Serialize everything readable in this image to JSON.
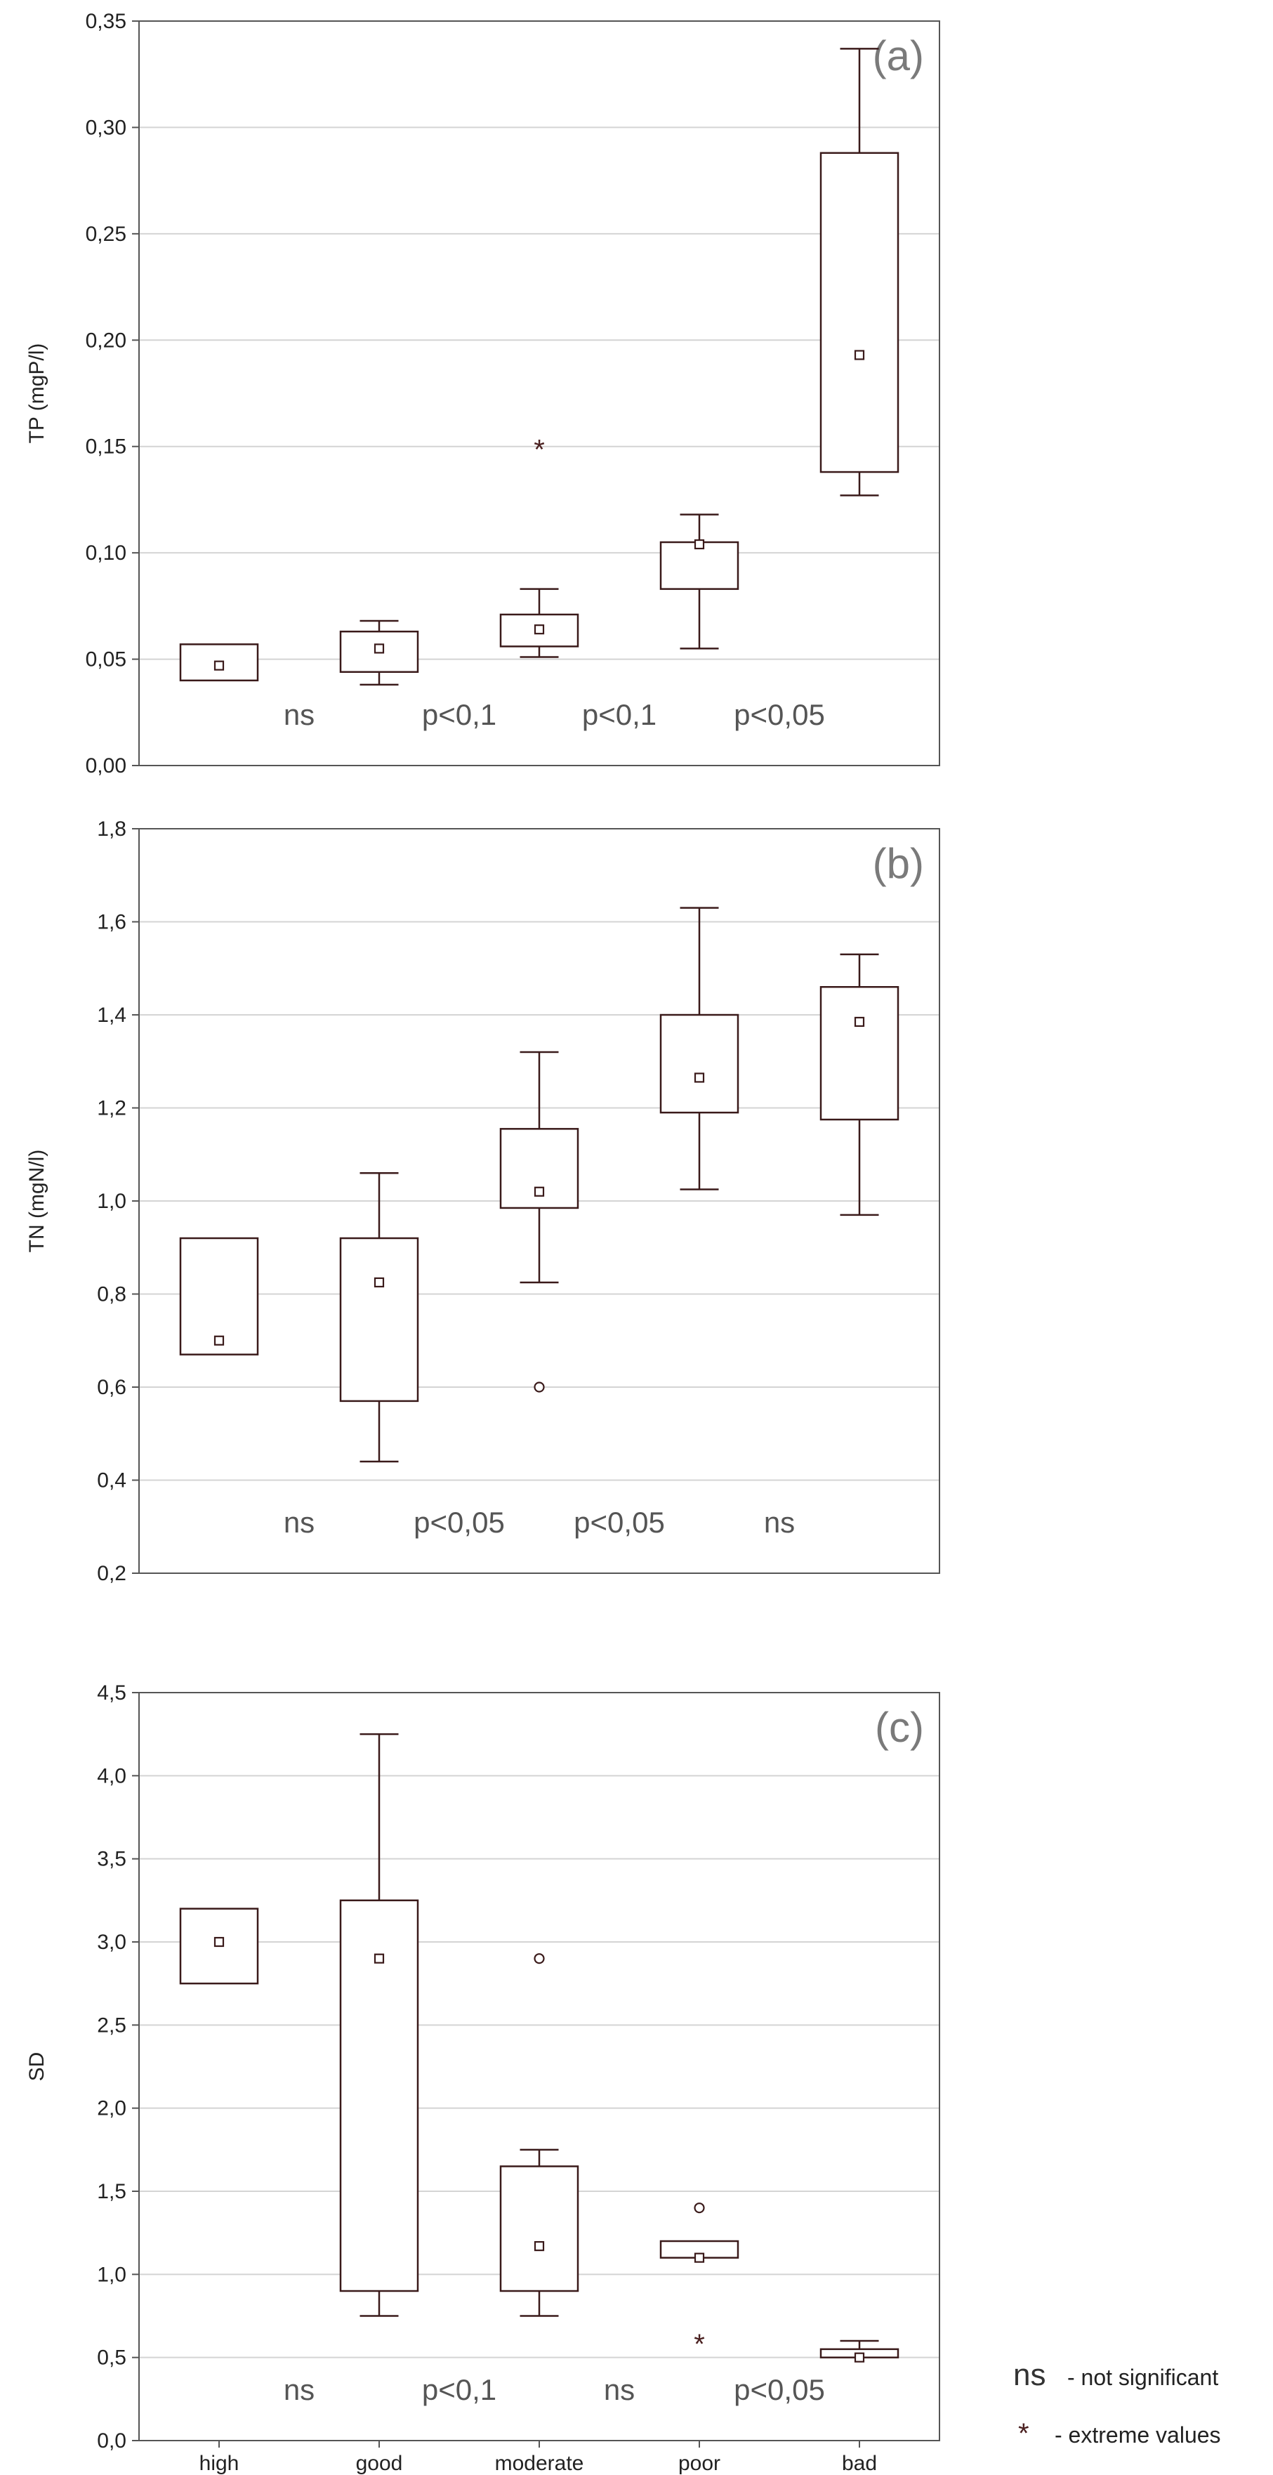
{
  "chart_data": [
    {
      "type": "box",
      "panel_label": "(a)",
      "ylabel": "TP (mgP/l)",
      "ylim": [
        0.0,
        0.35
      ],
      "yticks": [
        "0,00",
        "0,05",
        "0,10",
        "0,15",
        "0,20",
        "0,25",
        "0,30",
        "0,35"
      ],
      "grid": "horizontal",
      "categories": [
        "high",
        "good",
        "moderate",
        "poor",
        "bad"
      ],
      "boxes": [
        {
          "category": "high",
          "q1": 0.04,
          "q3": 0.057,
          "median": 0.047,
          "whisker_low": null,
          "whisker_high": null,
          "outliers": [],
          "extremes": []
        },
        {
          "category": "good",
          "q1": 0.044,
          "q3": 0.063,
          "median": 0.055,
          "whisker_low": 0.038,
          "whisker_high": 0.068,
          "outliers": [],
          "extremes": []
        },
        {
          "category": "moderate",
          "q1": 0.056,
          "q3": 0.071,
          "median": 0.064,
          "whisker_low": 0.051,
          "whisker_high": 0.083,
          "outliers": [],
          "extremes": [
            0.15
          ]
        },
        {
          "category": "poor",
          "q1": 0.083,
          "q3": 0.105,
          "median": 0.104,
          "whisker_low": 0.055,
          "whisker_high": 0.118,
          "outliers": [],
          "extremes": []
        },
        {
          "category": "bad",
          "q1": 0.138,
          "q3": 0.288,
          "median": 0.193,
          "whisker_low": 0.127,
          "whisker_high": 0.337,
          "outliers": [],
          "extremes": []
        }
      ],
      "significance": [
        {
          "between": [
            "high",
            "good"
          ],
          "label": "ns"
        },
        {
          "between": [
            "good",
            "moderate"
          ],
          "label": "p<0,1"
        },
        {
          "between": [
            "moderate",
            "poor"
          ],
          "label": "p<0,1"
        },
        {
          "between": [
            "poor",
            "bad"
          ],
          "label": "p<0,05"
        }
      ]
    },
    {
      "type": "box",
      "panel_label": "(b)",
      "ylabel": "TN (mgN/l)",
      "ylim": [
        0.2,
        1.8
      ],
      "yticks": [
        "0,2",
        "0,4",
        "0,6",
        "0,8",
        "1,0",
        "1,2",
        "1,4",
        "1,6",
        "1,8"
      ],
      "grid": "horizontal",
      "categories": [
        "high",
        "good",
        "moderate",
        "poor",
        "bad"
      ],
      "boxes": [
        {
          "category": "high",
          "q1": 0.67,
          "q3": 0.92,
          "median": 0.7,
          "whisker_low": null,
          "whisker_high": null,
          "outliers": [],
          "extremes": []
        },
        {
          "category": "good",
          "q1": 0.57,
          "q3": 0.92,
          "median": 0.825,
          "whisker_low": 0.44,
          "whisker_high": 1.06,
          "outliers": [],
          "extremes": []
        },
        {
          "category": "moderate",
          "q1": 0.985,
          "q3": 1.155,
          "median": 1.02,
          "whisker_low": 0.825,
          "whisker_high": 1.32,
          "outliers": [
            0.6
          ],
          "extremes": []
        },
        {
          "category": "poor",
          "q1": 1.19,
          "q3": 1.4,
          "median": 1.265,
          "whisker_low": 1.025,
          "whisker_high": 1.63,
          "outliers": [],
          "extremes": []
        },
        {
          "category": "bad",
          "q1": 1.175,
          "q3": 1.46,
          "median": 1.385,
          "whisker_low": 0.97,
          "whisker_high": 1.53,
          "outliers": [],
          "extremes": []
        }
      ],
      "significance": [
        {
          "between": [
            "high",
            "good"
          ],
          "label": "ns"
        },
        {
          "between": [
            "good",
            "moderate"
          ],
          "label": "p<0,05"
        },
        {
          "between": [
            "moderate",
            "poor"
          ],
          "label": "p<0,05"
        },
        {
          "between": [
            "poor",
            "bad"
          ],
          "label": "ns"
        }
      ]
    },
    {
      "type": "box",
      "panel_label": "(c)",
      "ylabel": "SD",
      "ylim": [
        0.0,
        4.5
      ],
      "yticks": [
        "0,0",
        "0,5",
        "1,0",
        "1,5",
        "2,0",
        "2,5",
        "3,0",
        "3,5",
        "4,0",
        "4,5"
      ],
      "grid": "horizontal",
      "categories": [
        "high",
        "good",
        "moderate",
        "poor",
        "bad"
      ],
      "boxes": [
        {
          "category": "high",
          "q1": 2.75,
          "q3": 3.2,
          "median": 3.0,
          "whisker_low": null,
          "whisker_high": null,
          "outliers": [],
          "extremes": []
        },
        {
          "category": "good",
          "q1": 0.9,
          "q3": 3.25,
          "median": 2.9,
          "whisker_low": 0.75,
          "whisker_high": 4.25,
          "outliers": [],
          "extremes": []
        },
        {
          "category": "moderate",
          "q1": 0.9,
          "q3": 1.65,
          "median": 1.17,
          "whisker_low": 0.75,
          "whisker_high": 1.75,
          "outliers": [
            2.9
          ],
          "extremes": []
        },
        {
          "category": "poor",
          "q1": 1.1,
          "q3": 1.2,
          "median": 1.1,
          "whisker_low": null,
          "whisker_high": null,
          "outliers": [
            1.4
          ],
          "extremes": [
            0.6
          ]
        },
        {
          "category": "bad",
          "q1": 0.5,
          "q3": 0.55,
          "median": 0.5,
          "whisker_low": null,
          "whisker_high": 0.6,
          "outliers": [],
          "extremes": []
        }
      ],
      "significance": [
        {
          "between": [
            "high",
            "good"
          ],
          "label": "ns"
        },
        {
          "between": [
            "good",
            "moderate"
          ],
          "label": "p<0,1"
        },
        {
          "between": [
            "moderate",
            "poor"
          ],
          "label": "ns"
        },
        {
          "between": [
            "poor",
            "bad"
          ],
          "label": "p<0,05"
        }
      ]
    }
  ],
  "legend": {
    "items": [
      {
        "symbol": "ns",
        "text": "- not significant"
      },
      {
        "symbol": "*",
        "text": "- extreme values"
      }
    ]
  },
  "colors": {
    "box_stroke": "#3a1a1a",
    "grid": "#d4d4d4",
    "frame": "#555555",
    "sig_text": "#555555",
    "panel_letter": "#7a7a7a"
  }
}
